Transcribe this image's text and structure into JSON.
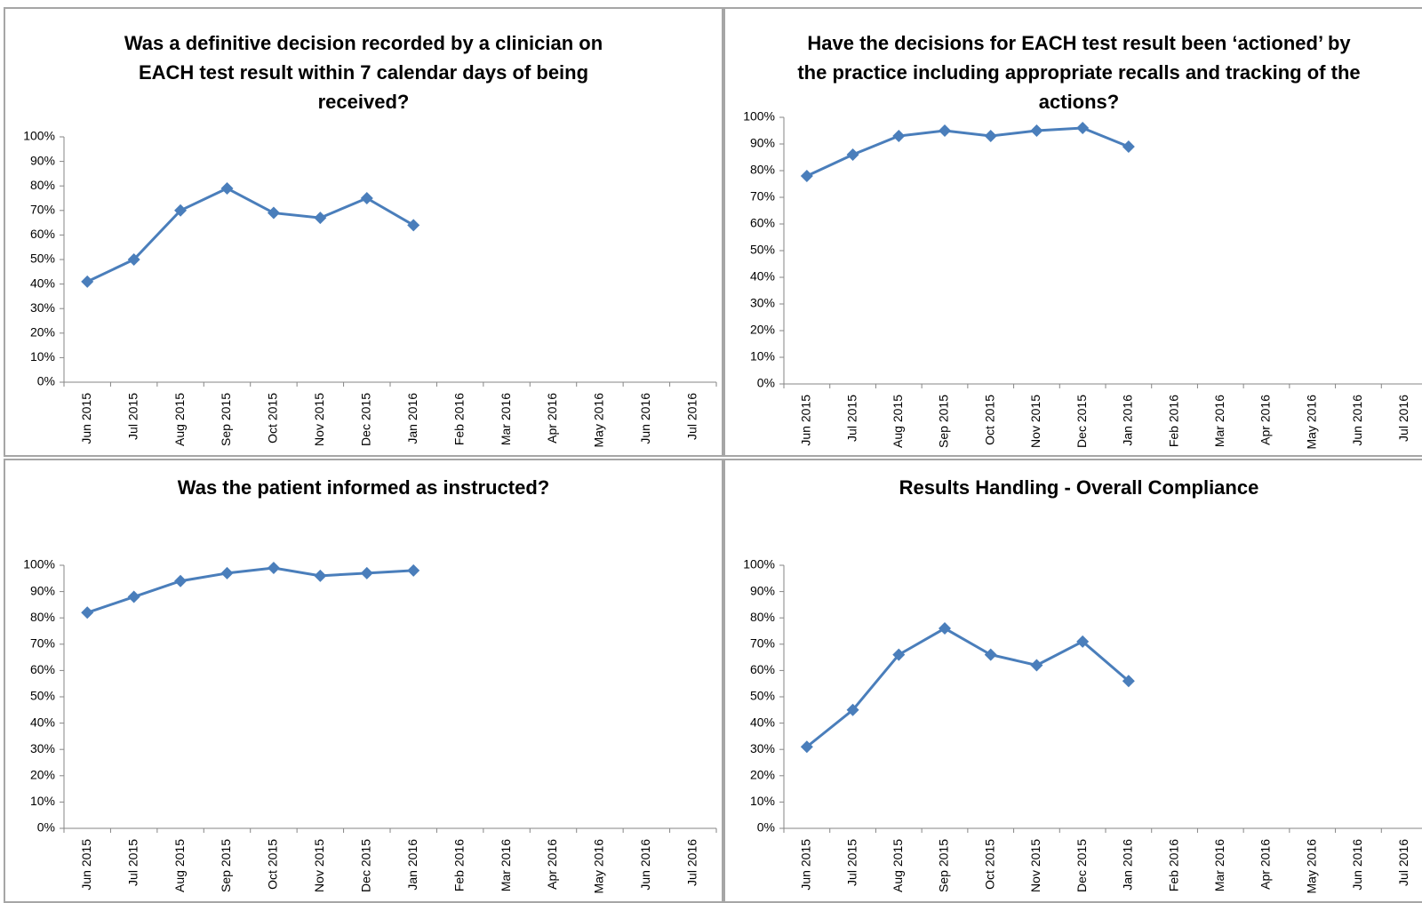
{
  "chart_data": [
    {
      "type": "line",
      "title": "Was a definitive decision recorded by a clinician on EACH test result within 7 calendar days of being received?",
      "categories": [
        "Jun 2015",
        "Jul 2015",
        "Aug 2015",
        "Sep 2015",
        "Oct 2015",
        "Nov 2015",
        "Dec 2015",
        "Jan 2016",
        "Feb 2016",
        "Mar 2016",
        "Apr 2016",
        "May 2016",
        "Jun 2016",
        "Jul 2016"
      ],
      "values": [
        41,
        50,
        70,
        79,
        69,
        67,
        75,
        64,
        null,
        null,
        null,
        null,
        null,
        null
      ],
      "color": "#4a7ebb",
      "ylim": [
        0,
        100
      ],
      "yticks": [
        {
          "value": 0,
          "label": "0%"
        },
        {
          "value": 10,
          "label": "10%"
        },
        {
          "value": 20,
          "label": "20%"
        },
        {
          "value": 30,
          "label": "30%"
        },
        {
          "value": 40,
          "label": "40%"
        },
        {
          "value": 50,
          "label": "50%"
        },
        {
          "value": 60,
          "label": "60%"
        },
        {
          "value": 70,
          "label": "70%"
        },
        {
          "value": 80,
          "label": "80%"
        },
        {
          "value": 90,
          "label": "90%"
        },
        {
          "value": 100,
          "label": "100%"
        }
      ]
    },
    {
      "type": "line",
      "title": "Have the decisions for EACH test result been ‘actioned’ by the practice including appropriate recalls and tracking of the actions?",
      "categories": [
        "Jun 2015",
        "Jul 2015",
        "Aug 2015",
        "Sep 2015",
        "Oct 2015",
        "Nov 2015",
        "Dec 2015",
        "Jan 2016",
        "Feb 2016",
        "Mar 2016",
        "Apr 2016",
        "May 2016",
        "Jun 2016",
        "Jul 2016"
      ],
      "values": [
        78,
        86,
        93,
        95,
        93,
        95,
        96,
        89,
        null,
        null,
        null,
        null,
        null,
        null
      ],
      "color": "#4a7ebb",
      "ylim": [
        0,
        100
      ],
      "yticks": [
        {
          "value": 0,
          "label": "0%"
        },
        {
          "value": 10,
          "label": "10%"
        },
        {
          "value": 20,
          "label": "20%"
        },
        {
          "value": 30,
          "label": "30%"
        },
        {
          "value": 40,
          "label": "40%"
        },
        {
          "value": 50,
          "label": "50%"
        },
        {
          "value": 60,
          "label": "60%"
        },
        {
          "value": 70,
          "label": "70%"
        },
        {
          "value": 80,
          "label": "80%"
        },
        {
          "value": 90,
          "label": "90%"
        },
        {
          "value": 100,
          "label": "100%"
        }
      ]
    },
    {
      "type": "line",
      "title": "Was the patient informed as instructed?",
      "categories": [
        "Jun 2015",
        "Jul 2015",
        "Aug 2015",
        "Sep 2015",
        "Oct 2015",
        "Nov 2015",
        "Dec 2015",
        "Jan 2016",
        "Feb 2016",
        "Mar 2016",
        "Apr 2016",
        "May 2016",
        "Jun 2016",
        "Jul 2016"
      ],
      "values": [
        82,
        88,
        94,
        97,
        99,
        96,
        97,
        98,
        null,
        null,
        null,
        null,
        null,
        null
      ],
      "color": "#4a7ebb",
      "ylim": [
        0,
        100
      ],
      "yticks": [
        {
          "value": 0,
          "label": "0%"
        },
        {
          "value": 10,
          "label": "10%"
        },
        {
          "value": 20,
          "label": "20%"
        },
        {
          "value": 30,
          "label": "30%"
        },
        {
          "value": 40,
          "label": "40%"
        },
        {
          "value": 50,
          "label": "50%"
        },
        {
          "value": 60,
          "label": "60%"
        },
        {
          "value": 70,
          "label": "70%"
        },
        {
          "value": 80,
          "label": "80%"
        },
        {
          "value": 90,
          "label": "90%"
        },
        {
          "value": 100,
          "label": "100%"
        }
      ]
    },
    {
      "type": "line",
      "title": "Results Handling - Overall Compliance",
      "categories": [
        "Jun 2015",
        "Jul 2015",
        "Aug 2015",
        "Sep 2015",
        "Oct 2015",
        "Nov 2015",
        "Dec 2015",
        "Jan 2016",
        "Feb 2016",
        "Mar 2016",
        "Apr 2016",
        "May 2016",
        "Jun 2016",
        "Jul 2016"
      ],
      "values": [
        31,
        45,
        66,
        76,
        66,
        62,
        71,
        56,
        null,
        null,
        null,
        null,
        null,
        null
      ],
      "color": "#4a7ebb",
      "ylim": [
        0,
        100
      ],
      "yticks": [
        {
          "value": 0,
          "label": "0%"
        },
        {
          "value": 10,
          "label": "10%"
        },
        {
          "value": 20,
          "label": "20%"
        },
        {
          "value": 30,
          "label": "30%"
        },
        {
          "value": 40,
          "label": "40%"
        },
        {
          "value": 50,
          "label": "50%"
        },
        {
          "value": 60,
          "label": "60%"
        },
        {
          "value": 70,
          "label": "70%"
        },
        {
          "value": 80,
          "label": "80%"
        },
        {
          "value": 90,
          "label": "90%"
        },
        {
          "value": 100,
          "label": "100%"
        }
      ]
    }
  ]
}
